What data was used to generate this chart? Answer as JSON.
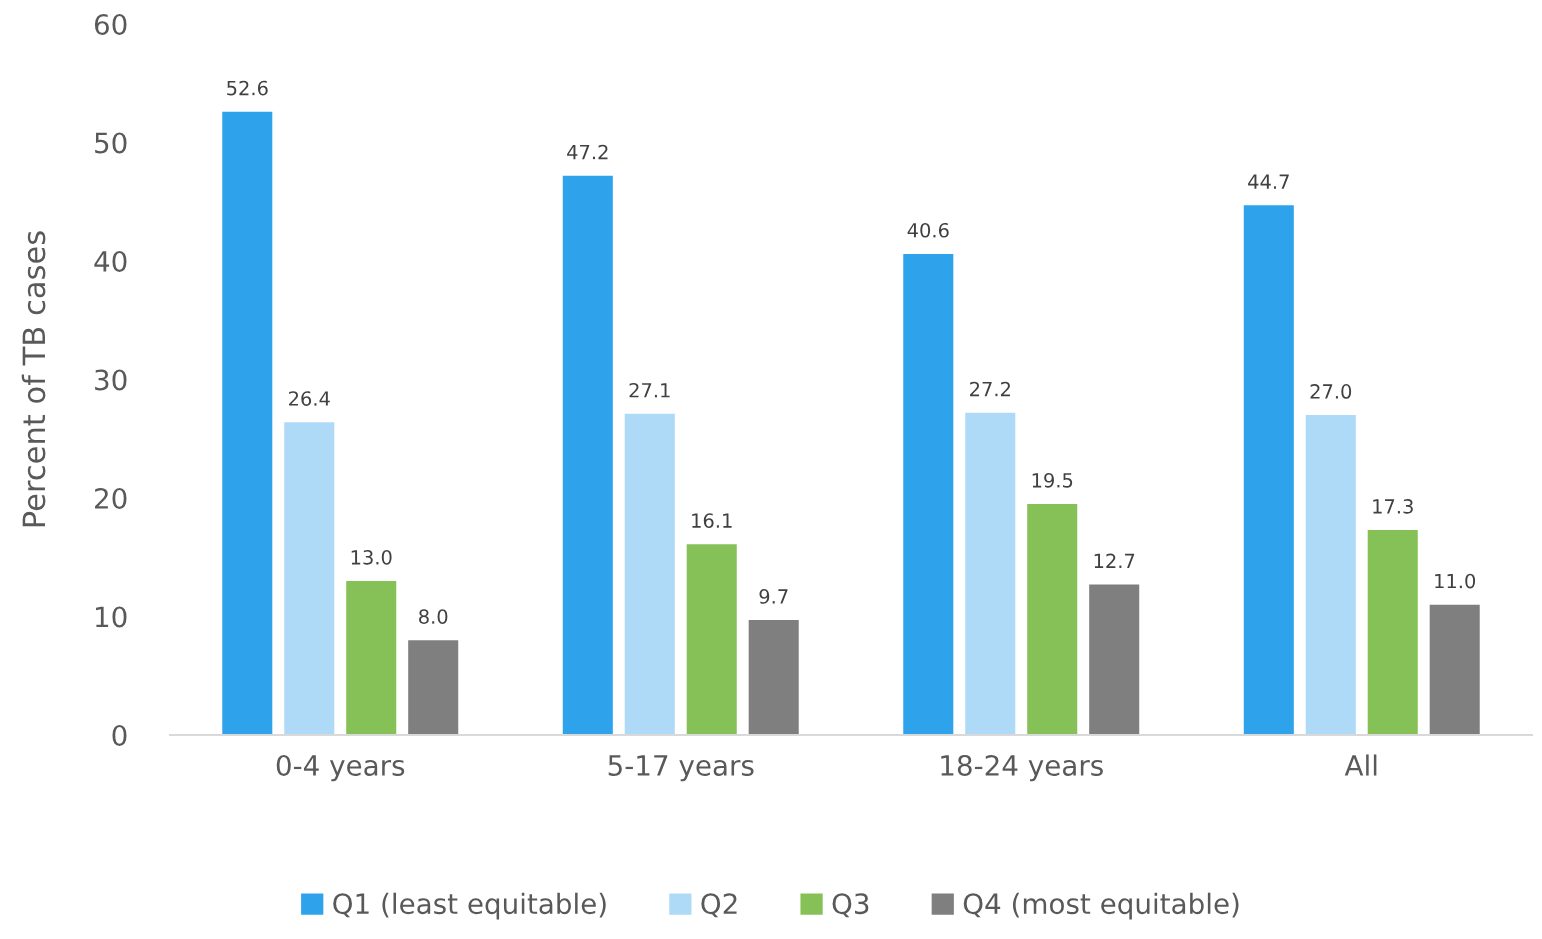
{
  "chart_data": {
    "type": "bar",
    "ylabel": "Percent of TB cases",
    "categories": [
      "0-4 years",
      "5-17 years",
      "18-24 years",
      "All"
    ],
    "series": [
      {
        "name": "Q1 (least equitable)",
        "color": "#2ea3ec",
        "values": [
          52.6,
          47.2,
          40.6,
          44.7
        ],
        "value_labels": [
          "52.6",
          "47.2",
          "40.6",
          "44.7"
        ]
      },
      {
        "name": "Q2",
        "color": "#aed9f7",
        "values": [
          26.4,
          27.1,
          27.2,
          27.0
        ],
        "value_labels": [
          "26.4",
          "27.1",
          "27.2",
          "27.0"
        ]
      },
      {
        "name": "Q3",
        "color": "#86c157",
        "values": [
          13.0,
          16.1,
          19.5,
          17.3
        ],
        "value_labels": [
          "13.0",
          "16.1",
          "19.5",
          "17.3"
        ]
      },
      {
        "name": "Q4 (most equitable)",
        "color": "#7f7f7f",
        "values": [
          8.0,
          9.7,
          12.7,
          11.0
        ],
        "value_labels": [
          "8.0",
          "9.7",
          "12.7",
          "11.0"
        ]
      }
    ],
    "ylim": [
      0,
      60
    ],
    "yticks": [
      0,
      10,
      20,
      30,
      40,
      50,
      60
    ],
    "legend": "bottom",
    "grid": false
  }
}
